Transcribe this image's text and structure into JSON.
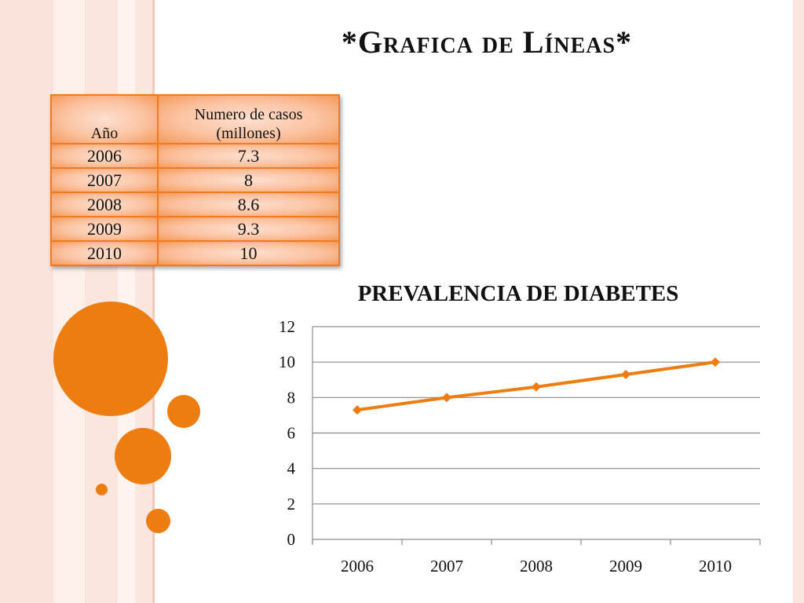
{
  "slide": {
    "title": "*Grafica de Líneas*"
  },
  "table": {
    "headers": [
      "Año",
      "Numero de casos",
      "(millones)"
    ],
    "rows": [
      {
        "year": "2006",
        "value": "7.3"
      },
      {
        "year": "2007",
        "value": "8"
      },
      {
        "year": "2008",
        "value": "8.6"
      },
      {
        "year": "2009",
        "value": "9.3"
      },
      {
        "year": "2010",
        "value": "10"
      }
    ]
  },
  "chart_data": {
    "type": "line",
    "title": "PREVALENCIA DE DIABETES",
    "categories": [
      "2006",
      "2007",
      "2008",
      "2009",
      "2010"
    ],
    "series": [
      {
        "values": [
          7.3,
          8,
          8.6,
          9.3,
          10
        ],
        "color": "#ee7d11"
      }
    ],
    "ylim": [
      0,
      12
    ],
    "yticks": [
      0,
      2,
      4,
      6,
      8,
      10,
      12
    ],
    "grid": true,
    "legend": "none"
  },
  "colors": {
    "accent": "#ee7d11",
    "table_border": "#ef7b1e"
  }
}
